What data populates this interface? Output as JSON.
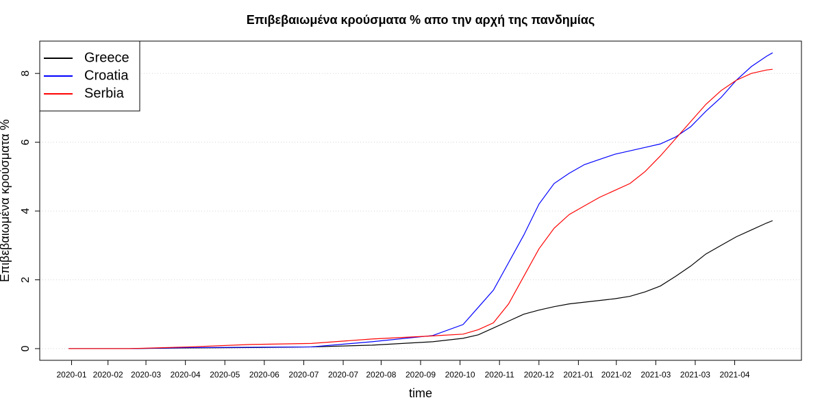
{
  "chart_data": {
    "type": "line",
    "title": "Επιβεβαιωμένα κρούσματα % απο την αρχή της πανδημίας",
    "x_label": "time",
    "y_label": "Επιβεβαιωμένα κρούσματα %",
    "x": [
      0,
      40,
      80,
      120,
      160,
      200,
      240,
      260,
      270,
      280,
      290,
      300,
      310,
      320,
      330,
      340,
      350,
      360,
      370,
      380,
      390,
      400,
      410,
      420,
      430,
      440,
      450,
      460,
      464
    ],
    "series": [
      {
        "name": "Greece",
        "color": "#000000",
        "values": [
          0,
          0,
          0.02,
          0.03,
          0.05,
          0.1,
          0.2,
          0.3,
          0.4,
          0.6,
          0.8,
          1.0,
          1.12,
          1.22,
          1.3,
          1.35,
          1.4,
          1.45,
          1.52,
          1.65,
          1.82,
          2.1,
          2.4,
          2.75,
          3.0,
          3.25,
          3.45,
          3.65,
          3.72
        ]
      },
      {
        "name": "Croatia",
        "color": "#0000ff",
        "values": [
          0,
          0,
          0.03,
          0.04,
          0.05,
          0.2,
          0.38,
          0.7,
          1.2,
          1.7,
          2.5,
          3.3,
          4.2,
          4.8,
          5.1,
          5.35,
          5.5,
          5.65,
          5.75,
          5.85,
          5.95,
          6.15,
          6.45,
          6.9,
          7.3,
          7.8,
          8.2,
          8.5,
          8.6
        ]
      },
      {
        "name": "Serbia",
        "color": "#ff0000",
        "values": [
          0,
          0,
          0.05,
          0.12,
          0.15,
          0.28,
          0.37,
          0.42,
          0.55,
          0.75,
          1.3,
          2.1,
          2.9,
          3.5,
          3.9,
          4.15,
          4.4,
          4.6,
          4.8,
          5.15,
          5.6,
          6.1,
          6.6,
          7.1,
          7.5,
          7.8,
          8.0,
          8.1,
          8.12
        ]
      }
    ],
    "xlim": [
      -19,
      483
    ],
    "xticks": [
      {
        "value": 2,
        "label": "2020-01"
      },
      {
        "value": 26,
        "label": "2020-02"
      },
      {
        "value": 51,
        "label": "2020-03"
      },
      {
        "value": 77,
        "label": "2020-04"
      },
      {
        "value": 103,
        "label": "2020-05"
      },
      {
        "value": 129,
        "label": "2020-06"
      },
      {
        "value": 155,
        "label": "2020-07"
      },
      {
        "value": 181,
        "label": "2020-07"
      },
      {
        "value": 206,
        "label": "2020-08"
      },
      {
        "value": 232,
        "label": "2020-09"
      },
      {
        "value": 258,
        "label": "2020-10"
      },
      {
        "value": 284,
        "label": "2020-11"
      },
      {
        "value": 310,
        "label": "2020-12"
      },
      {
        "value": 336,
        "label": "2021-01"
      },
      {
        "value": 361,
        "label": "2021-02"
      },
      {
        "value": 387,
        "label": "2021-03"
      },
      {
        "value": 413,
        "label": "2021-03"
      },
      {
        "value": 439,
        "label": "2021-04"
      }
    ],
    "ylim": [
      -0.34,
      8.94
    ],
    "yticks": [
      0,
      2,
      4,
      6,
      8
    ],
    "grid": true,
    "legend": "top-left"
  }
}
